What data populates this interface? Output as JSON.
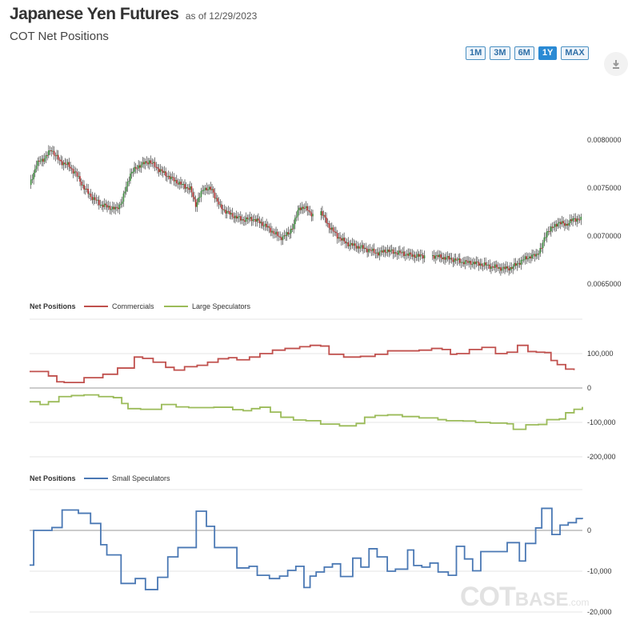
{
  "header": {
    "title": "Japanese Yen Futures",
    "as_of": "as of 12/29/2023",
    "subtitle": "COT Net Positions"
  },
  "range_buttons": [
    {
      "label": "1M",
      "active": false
    },
    {
      "label": "3M",
      "active": false
    },
    {
      "label": "6M",
      "active": false
    },
    {
      "label": "1Y",
      "active": true
    },
    {
      "label": "MAX",
      "active": false
    }
  ],
  "download_icon": "download-icon",
  "watermark": {
    "brand_a": "COT",
    "brand_b": "BASE",
    "brand_c": ".com"
  },
  "colors": {
    "commercials": "#c0504d",
    "large_speculators": "#9bbb59",
    "small_speculators": "#4a78b4",
    "candle_up": "#3c8a3c",
    "candle_down": "#b03030",
    "accent": "#2a8ad4"
  },
  "chart_data": [
    {
      "type": "candlestick",
      "ylim": [
        0.0065,
        0.008
      ],
      "y_ticks": [
        "0.0080000",
        "0.0075000",
        "0.0070000",
        "0.0065000"
      ],
      "y_tick_values": [
        0.008,
        0.0075,
        0.007,
        0.0065
      ],
      "close_anchors": [
        [
          0,
          0.00752
        ],
        [
          5,
          0.00775
        ],
        [
          10,
          0.0078
        ],
        [
          16,
          0.0079
        ],
        [
          22,
          0.00778
        ],
        [
          28,
          0.00774
        ],
        [
          34,
          0.00765
        ],
        [
          40,
          0.0075
        ],
        [
          46,
          0.0074
        ],
        [
          52,
          0.00733
        ],
        [
          58,
          0.0073
        ],
        [
          64,
          0.00728
        ],
        [
          68,
          0.00737
        ],
        [
          74,
          0.00765
        ],
        [
          80,
          0.00773
        ],
        [
          88,
          0.00778
        ],
        [
          96,
          0.00768
        ],
        [
          104,
          0.0076
        ],
        [
          112,
          0.00753
        ],
        [
          118,
          0.00749
        ],
        [
          122,
          0.00733
        ],
        [
          128,
          0.0075
        ],
        [
          134,
          0.00748
        ],
        [
          140,
          0.0073
        ],
        [
          148,
          0.00722
        ],
        [
          156,
          0.00717
        ],
        [
          164,
          0.00718
        ],
        [
          172,
          0.00712
        ],
        [
          178,
          0.00705
        ],
        [
          184,
          0.00698
        ],
        [
          190,
          0.00702
        ],
        [
          194,
          0.00712
        ],
        [
          198,
          0.0073
        ],
        [
          204,
          0.00728
        ],
        [
          210,
          0.00718
        ],
        [
          214,
          0.00725
        ],
        [
          220,
          0.0071
        ],
        [
          226,
          0.007
        ],
        [
          232,
          0.00693
        ],
        [
          238,
          0.0069
        ],
        [
          246,
          0.00687
        ],
        [
          252,
          0.00684
        ],
        [
          256,
          0.00682
        ],
        [
          262,
          0.00685
        ],
        [
          268,
          0.00683
        ],
        [
          274,
          0.00682
        ],
        [
          280,
          0.0068
        ],
        [
          286,
          0.00679
        ],
        [
          294,
          0.0068
        ],
        [
          302,
          0.00678
        ],
        [
          310,
          0.00676
        ],
        [
          318,
          0.00673
        ],
        [
          326,
          0.00672
        ],
        [
          334,
          0.0067
        ],
        [
          340,
          0.00668
        ],
        [
          348,
          0.00666
        ],
        [
          354,
          0.00667
        ],
        [
          360,
          0.00673
        ],
        [
          366,
          0.00678
        ],
        [
          372,
          0.0068
        ],
        [
          376,
          0.00688
        ],
        [
          380,
          0.00705
        ],
        [
          384,
          0.00708
        ],
        [
          388,
          0.00714
        ],
        [
          394,
          0.00712
        ],
        [
          400,
          0.00718
        ],
        [
          405,
          0.00717
        ]
      ],
      "gaps": [
        [
          208,
          214
        ],
        [
          290,
          296
        ]
      ]
    },
    {
      "type": "line",
      "legend_title": "Net Positions",
      "ylim": [
        -200000,
        200000
      ],
      "y_ticks": [
        "100,000",
        "0",
        "-100,000",
        "-200,000"
      ],
      "y_tick_values": [
        100000,
        0,
        -100000,
        -200000
      ],
      "series": [
        {
          "name": "Commercials",
          "color_key": "commercials",
          "steps": [
            [
              0,
              48000
            ],
            [
              18,
              35000
            ],
            [
              26,
              18000
            ],
            [
              33,
              16000
            ],
            [
              52,
              30000
            ],
            [
              70,
              40000
            ],
            [
              84,
              58000
            ],
            [
              100,
              90000
            ],
            [
              108,
              86000
            ],
            [
              118,
              75000
            ],
            [
              130,
              60000
            ],
            [
              138,
              52000
            ],
            [
              148,
              62000
            ],
            [
              160,
              66000
            ],
            [
              170,
              75000
            ],
            [
              180,
              85000
            ],
            [
              190,
              88000
            ],
            [
              198,
              82000
            ],
            [
              210,
              90000
            ],
            [
              220,
              100000
            ],
            [
              232,
              110000
            ],
            [
              244,
              115000
            ],
            [
              258,
              120000
            ],
            [
              268,
              124000
            ],
            [
              278,
              122000
            ],
            [
              286,
              98000
            ],
            [
              300,
              90000
            ],
            [
              316,
              92000
            ],
            [
              330,
              98000
            ],
            [
              342,
              108000
            ],
            [
              358,
              108000
            ],
            [
              372,
              110000
            ],
            [
              384,
              115000
            ],
            [
              394,
              112000
            ],
            [
              402,
              98000
            ],
            [
              408,
              100000
            ],
            [
              420,
              112000
            ],
            [
              432,
              118000
            ],
            [
              445,
              100000
            ],
            [
              456,
              104000
            ],
            [
              466,
              124000
            ],
            [
              476,
              106000
            ],
            [
              484,
              104000
            ],
            [
              492,
              103000
            ],
            [
              498,
              80000
            ],
            [
              504,
              68000
            ],
            [
              512,
              55000
            ],
            [
              520,
              52000
            ]
          ]
        },
        {
          "name": "Large Speculators",
          "color_key": "large_speculators",
          "steps": [
            [
              0,
              -40000
            ],
            [
              10,
              -48000
            ],
            [
              18,
              -40000
            ],
            [
              28,
              -25000
            ],
            [
              40,
              -22000
            ],
            [
              52,
              -20000
            ],
            [
              66,
              -25000
            ],
            [
              80,
              -28000
            ],
            [
              88,
              -45000
            ],
            [
              94,
              -60000
            ],
            [
              106,
              -62000
            ],
            [
              126,
              -48000
            ],
            [
              140,
              -55000
            ],
            [
              152,
              -57000
            ],
            [
              176,
              -56000
            ],
            [
              194,
              -63000
            ],
            [
              204,
              -66000
            ],
            [
              212,
              -60000
            ],
            [
              220,
              -56000
            ],
            [
              230,
              -70000
            ],
            [
              240,
              -85000
            ],
            [
              252,
              -93000
            ],
            [
              264,
              -95000
            ],
            [
              278,
              -105000
            ],
            [
              296,
              -110000
            ],
            [
              312,
              -103000
            ],
            [
              320,
              -85000
            ],
            [
              330,
              -80000
            ],
            [
              342,
              -78000
            ],
            [
              356,
              -83000
            ],
            [
              372,
              -87000
            ],
            [
              390,
              -92000
            ],
            [
              398,
              -95000
            ],
            [
              414,
              -96000
            ],
            [
              426,
              -100000
            ],
            [
              440,
              -102000
            ],
            [
              456,
              -104000
            ],
            [
              462,
              -120000
            ],
            [
              474,
              -107000
            ],
            [
              486,
              -106000
            ],
            [
              494,
              -92000
            ],
            [
              506,
              -90000
            ],
            [
              512,
              -72000
            ],
            [
              520,
              -62000
            ],
            [
              528,
              -55000
            ]
          ]
        }
      ]
    },
    {
      "type": "line",
      "legend_title": "Net Positions",
      "ylim": [
        -20000,
        10000
      ],
      "y_ticks": [
        "0",
        "-10,000",
        "-20,000"
      ],
      "y_tick_values": [
        0,
        -10000,
        -20000
      ],
      "series": [
        {
          "name": "Small Speculators",
          "color_key": "small_speculators",
          "steps": [
            [
              0,
              -8500
            ],
            [
              4,
              0
            ],
            [
              16,
              0
            ],
            [
              22,
              700
            ],
            [
              32,
              5000
            ],
            [
              48,
              4200
            ],
            [
              60,
              1700
            ],
            [
              70,
              -3500
            ],
            [
              76,
              -6000
            ],
            [
              90,
              -13000
            ],
            [
              104,
              -11800
            ],
            [
              114,
              -14500
            ],
            [
              126,
              -11500
            ],
            [
              136,
              -6500
            ],
            [
              146,
              -4200
            ],
            [
              156,
              -4200
            ],
            [
              164,
              4700
            ],
            [
              174,
              1000
            ],
            [
              182,
              -4200
            ],
            [
              194,
              -4200
            ],
            [
              204,
              -9200
            ],
            [
              216,
              -8800
            ],
            [
              224,
              -11000
            ],
            [
              236,
              -11800
            ],
            [
              246,
              -11200
            ],
            [
              254,
              -9800
            ],
            [
              262,
              -8800
            ],
            [
              270,
              -14000
            ],
            [
              276,
              -11200
            ],
            [
              282,
              -10200
            ],
            [
              290,
              -9000
            ],
            [
              298,
              -8200
            ],
            [
              306,
              -11300
            ],
            [
              318,
              -6800
            ],
            [
              326,
              -9000
            ],
            [
              334,
              -4500
            ],
            [
              342,
              -6500
            ],
            [
              352,
              -10000
            ],
            [
              360,
              -9500
            ],
            [
              372,
              -4800
            ],
            [
              378,
              -8600
            ],
            [
              386,
              -9000
            ],
            [
              394,
              -8000
            ],
            [
              402,
              -10200
            ],
            [
              412,
              -11000
            ],
            [
              420,
              -3900
            ],
            [
              428,
              -7000
            ],
            [
              436,
              -9900
            ],
            [
              444,
              -5200
            ],
            [
              452,
              -5200
            ],
            [
              462,
              -5200
            ],
            [
              470,
              -3000
            ],
            [
              482,
              -7500
            ],
            [
              488,
              -3200
            ],
            [
              498,
              600
            ],
            [
              504,
              5400
            ],
            [
              514,
              -1000
            ],
            [
              522,
              1300
            ],
            [
              530,
              1900
            ],
            [
              538,
              2900
            ],
            [
              544,
              2800
            ]
          ]
        }
      ]
    }
  ]
}
